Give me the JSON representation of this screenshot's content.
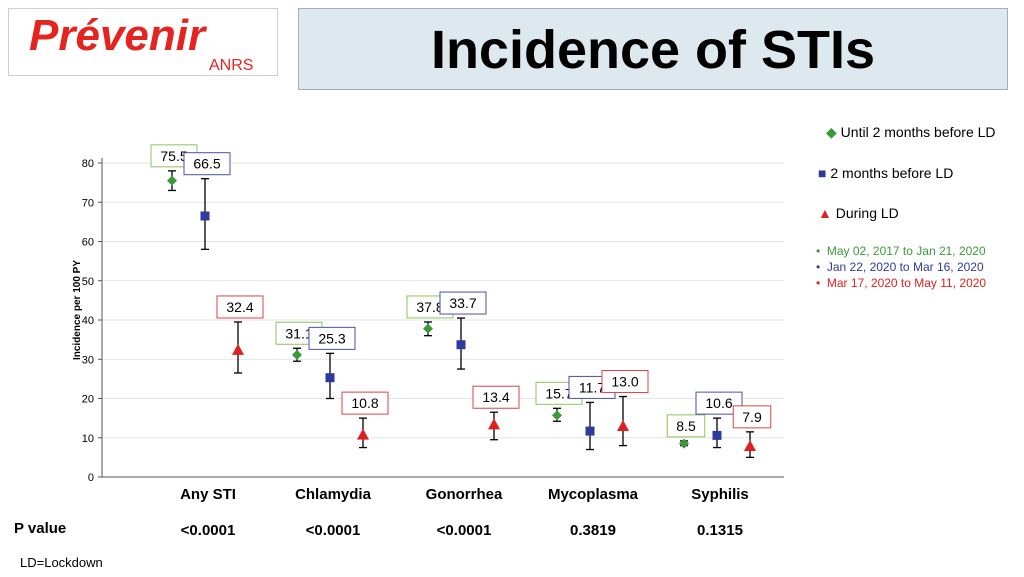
{
  "header": {
    "logo_text": "Prévenir",
    "logo_sub": "ANRS",
    "title": "Incidence of STIs"
  },
  "chart_data": {
    "type": "scatter",
    "ylabel": "Incidence per 100 PY",
    "ylim": [
      0,
      85
    ],
    "yticks": [
      0,
      10,
      20,
      30,
      40,
      50,
      60,
      70,
      80
    ],
    "grid": true,
    "legend_position": "right",
    "categories": [
      "Any STI",
      "Chlamydia",
      "Gonorrhea",
      "Mycoplasma",
      "Syphilis"
    ],
    "series": [
      {
        "name": "Until 2 months before LD",
        "period": "May 02, 2017 to Jan 21, 2020",
        "color": "#3a9a3a",
        "marker": "diamond",
        "values": [
          75.5,
          31.1,
          37.8,
          15.7,
          8.5
        ],
        "ci_low": [
          73.0,
          29.5,
          36.0,
          14.2,
          8.0
        ],
        "ci_high": [
          78.0,
          32.8,
          39.5,
          17.5,
          9.2
        ]
      },
      {
        "name": "2 months before LD",
        "period": "Jan 22, 2020 to Mar 16, 2020",
        "color": "#2e3a9e",
        "marker": "square",
        "values": [
          66.5,
          25.3,
          33.7,
          11.7,
          10.6
        ],
        "ci_low": [
          58.0,
          20.0,
          27.5,
          7.0,
          7.5
        ],
        "ci_high": [
          76.0,
          31.5,
          40.5,
          19.0,
          15.0
        ]
      },
      {
        "name": "During LD",
        "period": "Mar 17, 2020  to May 11, 2020",
        "color": "#e02020",
        "marker": "triangle",
        "values": [
          32.4,
          10.8,
          13.4,
          13.0,
          7.9
        ],
        "ci_low": [
          26.5,
          7.5,
          9.5,
          8.0,
          5.0
        ],
        "ci_high": [
          39.5,
          15.0,
          16.5,
          20.5,
          11.5
        ]
      }
    ],
    "data_labels": [
      [
        "75.5",
        "31.1",
        "37.8",
        "15.7",
        "8.5"
      ],
      [
        "66.5",
        "25.3",
        "33.7",
        "11.7",
        "10.6"
      ],
      [
        "32.4",
        "10.8",
        "13.4",
        "13.0",
        "7.9"
      ]
    ],
    "p_value_label": "P value",
    "p_values": [
      "<0.0001",
      "<0.0001",
      "<0.0001",
      "0.3819",
      "0.1315"
    ]
  },
  "footnote": "LD=Lockdown"
}
